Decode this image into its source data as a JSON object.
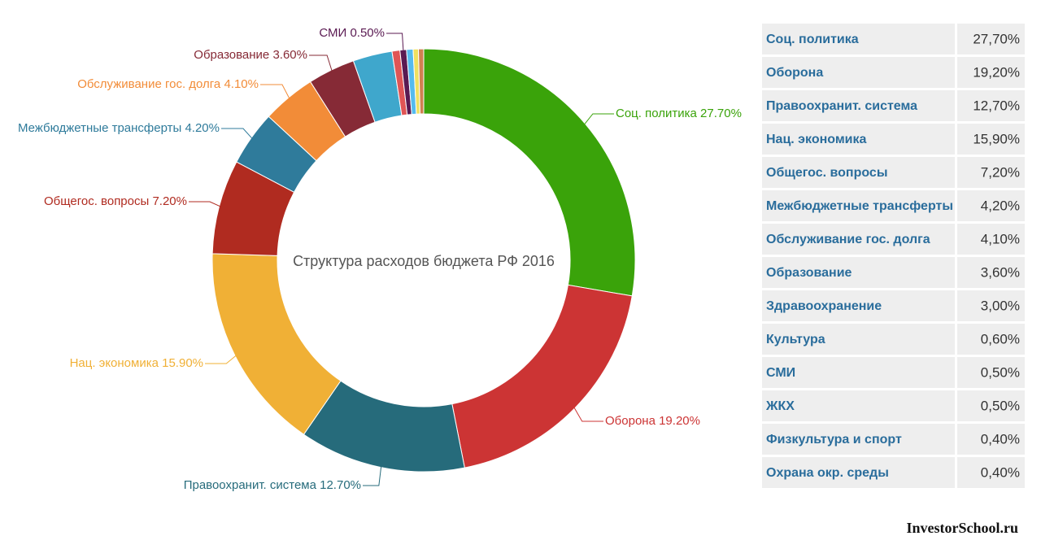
{
  "chart_data": {
    "type": "donut",
    "title": "Структура расходов бюджета РФ 2016",
    "categories": [
      "Соц. политика",
      "Оборона",
      "Правоохранит. система",
      "Нац. экономика",
      "Общегос. вопросы",
      "Межбюджетные трансферты",
      "Обслуживание гос. долга",
      "Образование",
      "Здравоохранение",
      "Культура",
      "СМИ",
      "ЖКХ",
      "Физкультура и спорт",
      "Охрана окр. среды"
    ],
    "values": [
      27.7,
      19.2,
      12.7,
      15.9,
      7.2,
      4.2,
      4.1,
      3.6,
      3.0,
      0.6,
      0.5,
      0.5,
      0.4,
      0.4
    ],
    "value_labels": [
      "27.70%",
      "19.20%",
      "12.70%",
      "15.90%",
      "7.20%",
      "4.20%",
      "4.10%",
      "3.60%",
      null,
      null,
      "0.50%",
      null,
      null,
      null
    ],
    "colors": [
      "#3aa30a",
      "#cc3434",
      "#266b7b",
      "#f0b036",
      "#b02b20",
      "#2f7b9b",
      "#f28c38",
      "#862a36",
      "#3fa7cc",
      "#e05555",
      "#5a1a52",
      "#55bbee",
      "#f0e060",
      "#d08050"
    ]
  },
  "table": {
    "rows": [
      [
        "Соц. политика",
        "27,70%"
      ],
      [
        "Оборона",
        "19,20%"
      ],
      [
        "Правоохранит. система",
        "12,70%"
      ],
      [
        "Нац. экономика",
        "15,90%"
      ],
      [
        "Общегос. вопросы",
        "7,20%"
      ],
      [
        "Межбюджетные трансферты",
        "4,20%"
      ],
      [
        "Обслуживание гос. долга",
        "4,10%"
      ],
      [
        "Образование",
        "3,60%"
      ],
      [
        "Здравоохранение",
        "3,00%"
      ],
      [
        "Культура",
        "0,60%"
      ],
      [
        "СМИ",
        "0,50%"
      ],
      [
        "ЖКХ",
        "0,50%"
      ],
      [
        "Физкультура и спорт",
        "0,40%"
      ],
      [
        "Охрана окр. среды",
        "0,40%"
      ]
    ]
  },
  "watermark": "InvestorSchool.ru"
}
